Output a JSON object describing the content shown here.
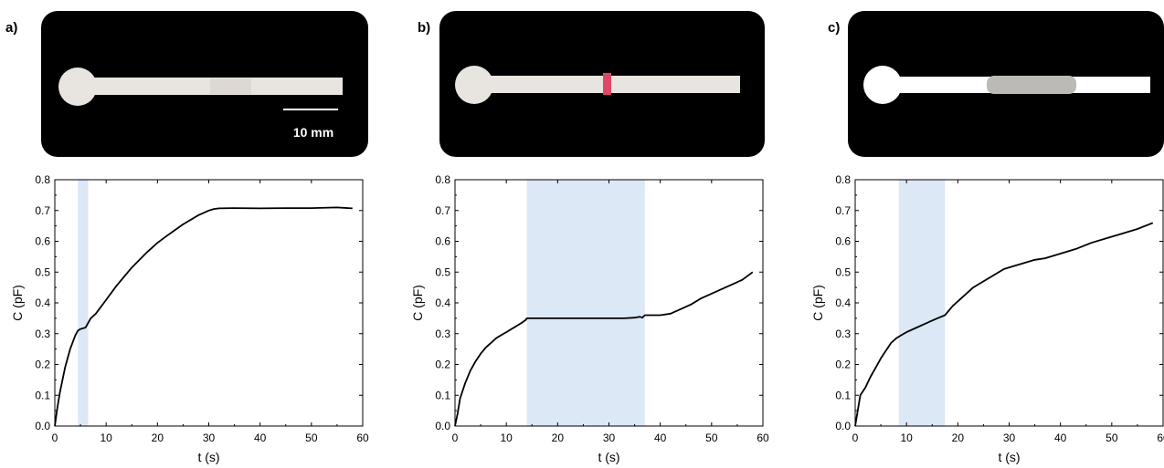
{
  "panels": [
    {
      "label": "a)",
      "photo": {
        "scale_bar_label": "10 mm",
        "dye": "none"
      }
    },
    {
      "label": "b)",
      "photo": {
        "dye": "red-band"
      }
    },
    {
      "label": "c)",
      "photo": {
        "dye": "gray-patch"
      }
    }
  ],
  "colors": {
    "line": "#000000",
    "highlight": "#dce8f5",
    "photo_background": "#000000",
    "strip": "#e8e4df"
  },
  "chart_data": [
    {
      "type": "line",
      "xlabel": "t (s)",
      "ylabel": "C (pF)",
      "xlim": [
        0,
        60
      ],
      "ylim": [
        0,
        0.8
      ],
      "xticks": [
        0,
        10,
        20,
        30,
        40,
        50,
        60
      ],
      "yticks": [
        "0.0",
        "0.1",
        "0.2",
        "0.3",
        "0.4",
        "0.5",
        "0.6",
        "0.7",
        "0.8"
      ],
      "highlight_region": [
        4.5,
        6.5
      ],
      "series": [
        {
          "x": [
            0,
            0.5,
            1,
            2,
            3,
            4,
            4.5,
            5,
            6,
            6.5,
            7,
            8,
            10,
            12,
            15,
            18,
            20,
            22,
            25,
            28,
            30,
            31,
            32,
            35,
            40,
            45,
            50,
            55,
            58
          ],
          "y": [
            0,
            0.06,
            0.11,
            0.19,
            0.25,
            0.295,
            0.31,
            0.315,
            0.32,
            0.335,
            0.35,
            0.365,
            0.41,
            0.455,
            0.515,
            0.565,
            0.595,
            0.62,
            0.655,
            0.685,
            0.7,
            0.705,
            0.707,
            0.708,
            0.707,
            0.708,
            0.708,
            0.71,
            0.707
          ]
        }
      ]
    },
    {
      "type": "line",
      "xlabel": "t (s)",
      "ylabel": "C (pF)",
      "xlim": [
        0,
        60
      ],
      "ylim": [
        0,
        0.8
      ],
      "xticks": [
        0,
        10,
        20,
        30,
        40,
        50,
        60
      ],
      "yticks": [
        "0.0",
        "0.1",
        "0.2",
        "0.3",
        "0.4",
        "0.5",
        "0.6",
        "0.7",
        "0.8"
      ],
      "highlight_region": [
        14,
        37
      ],
      "series": [
        {
          "x": [
            0,
            0.5,
            1,
            2,
            3,
            4,
            5,
            6,
            7,
            8,
            9,
            10,
            11,
            12,
            13,
            13.8,
            14,
            20,
            30,
            33,
            35,
            36,
            36.5,
            37,
            40,
            42,
            44,
            46,
            48,
            50,
            52,
            54,
            56,
            58
          ],
          "y": [
            0,
            0.04,
            0.09,
            0.14,
            0.18,
            0.21,
            0.235,
            0.255,
            0.27,
            0.285,
            0.295,
            0.305,
            0.315,
            0.325,
            0.335,
            0.345,
            0.35,
            0.35,
            0.35,
            0.35,
            0.352,
            0.355,
            0.352,
            0.36,
            0.36,
            0.365,
            0.38,
            0.395,
            0.415,
            0.43,
            0.445,
            0.46,
            0.475,
            0.5
          ]
        }
      ]
    },
    {
      "type": "line",
      "xlabel": "t (s)",
      "ylabel": "C (pF)",
      "xlim": [
        0,
        60
      ],
      "ylim": [
        0,
        0.8
      ],
      "xticks": [
        0,
        10,
        20,
        30,
        40,
        50,
        60
      ],
      "yticks": [
        "0.0",
        "0.1",
        "0.2",
        "0.3",
        "0.4",
        "0.5",
        "0.6",
        "0.7",
        "0.8"
      ],
      "highlight_region": [
        8.5,
        17.5
      ],
      "series": [
        {
          "x": [
            0,
            0.5,
            1,
            2,
            3,
            4,
            5,
            6,
            7,
            8,
            9,
            10,
            12,
            14,
            16,
            17.5,
            19,
            21,
            23,
            25,
            27,
            29,
            31,
            33,
            35,
            37,
            40,
            43,
            46,
            49,
            52,
            55,
            58
          ],
          "y": [
            0,
            0.05,
            0.1,
            0.125,
            0.16,
            0.19,
            0.22,
            0.245,
            0.27,
            0.285,
            0.295,
            0.305,
            0.32,
            0.335,
            0.35,
            0.36,
            0.39,
            0.42,
            0.45,
            0.47,
            0.49,
            0.51,
            0.52,
            0.53,
            0.54,
            0.545,
            0.56,
            0.575,
            0.595,
            0.61,
            0.625,
            0.64,
            0.66
          ]
        }
      ]
    }
  ]
}
